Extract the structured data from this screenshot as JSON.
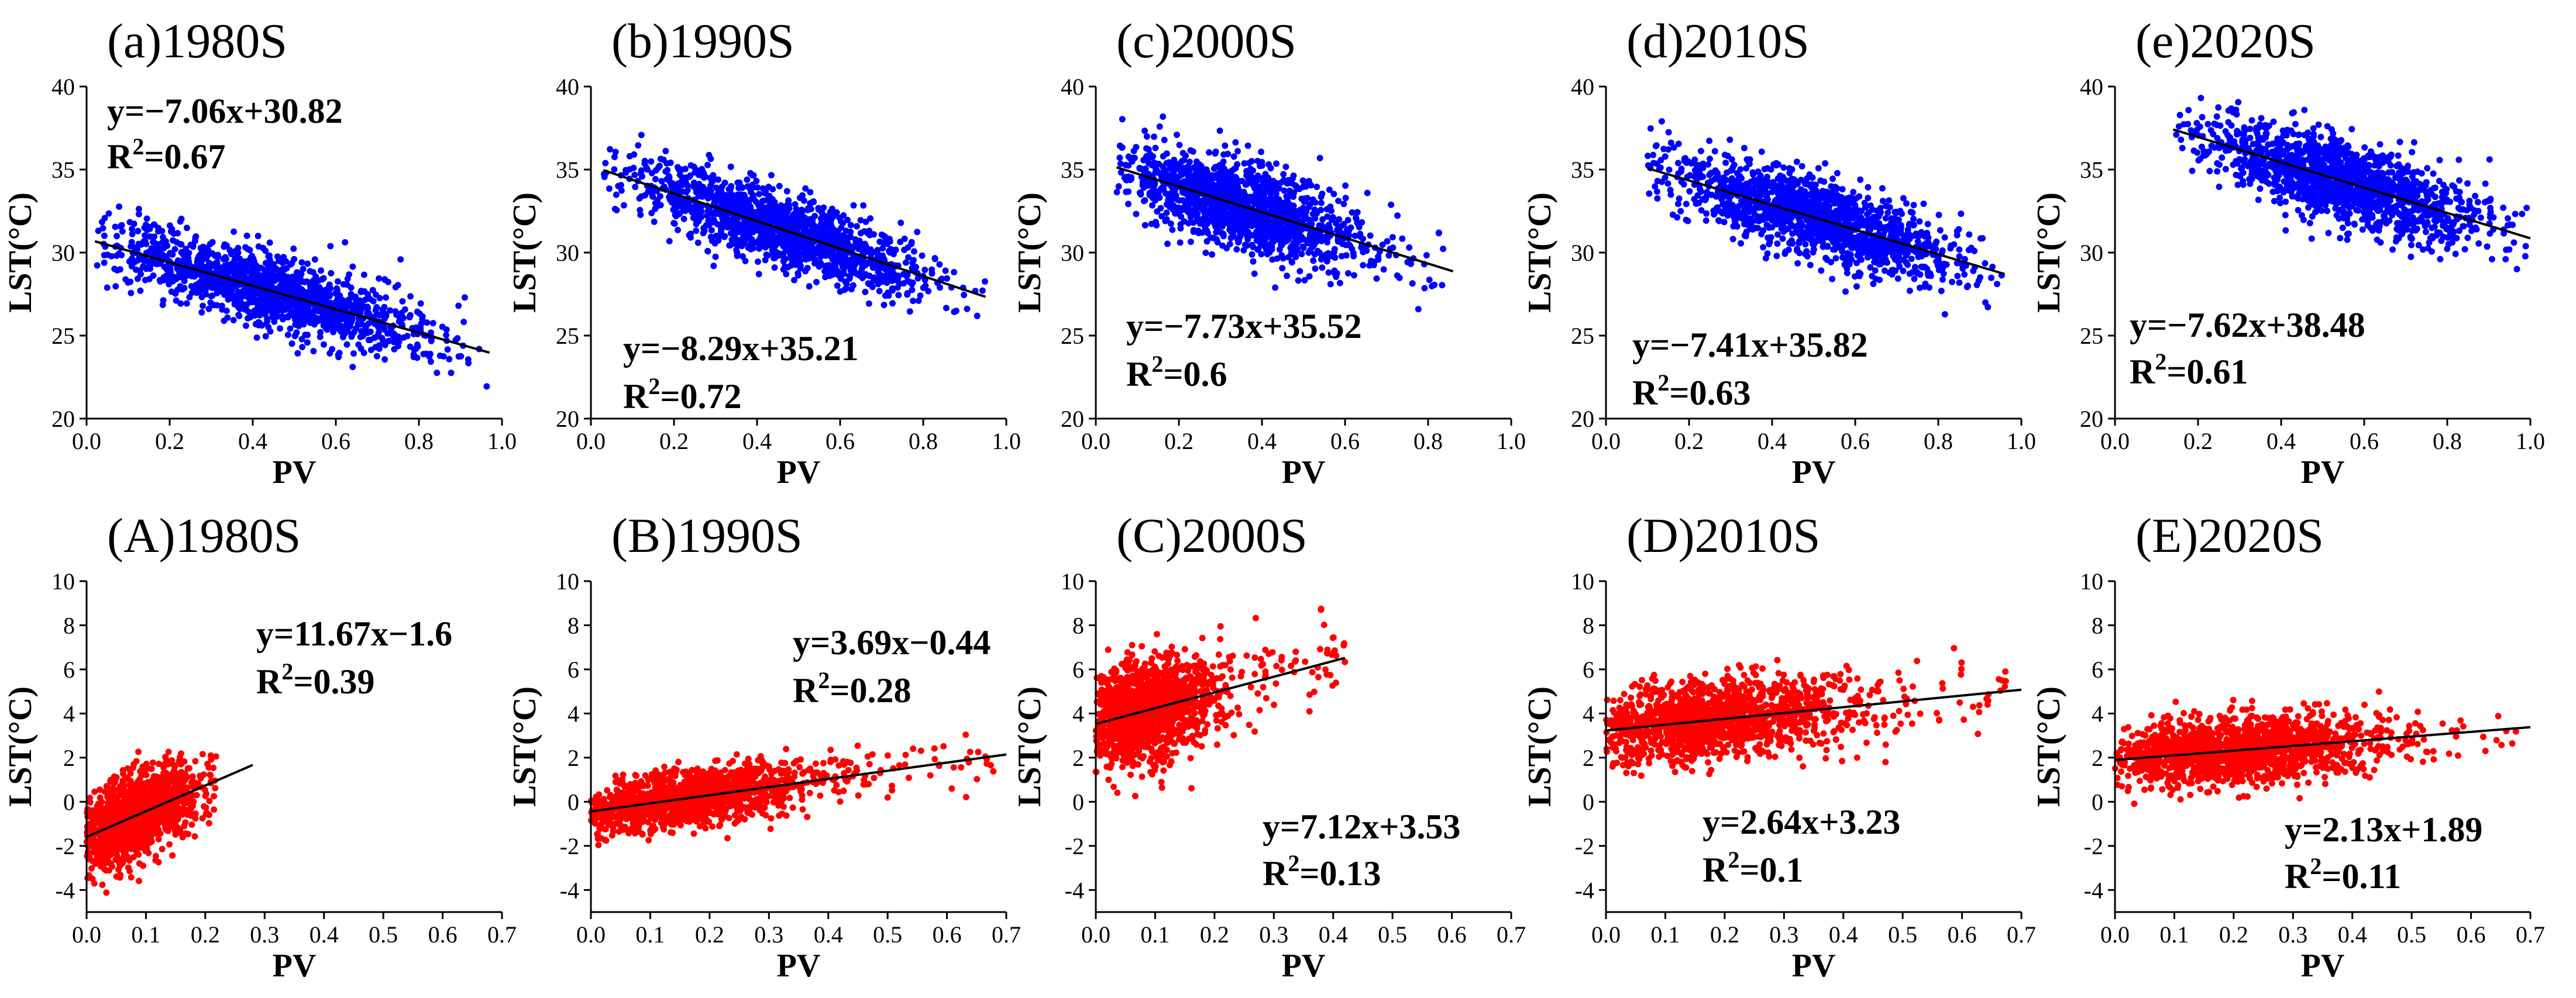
{
  "chart_data": [
    {
      "type": "scatter",
      "title": "(a)1980S",
      "xlabel": "PV",
      "ylabel": "LST(°C)",
      "xlim": [
        0,
        1
      ],
      "ylim": [
        20,
        40
      ],
      "xticks": [
        "0.0",
        "0.2",
        "0.4",
        "0.6",
        "0.8",
        "1.0"
      ],
      "yticks": [
        "20",
        "25",
        "30",
        "35",
        "40"
      ],
      "series": [
        {
          "color": "#0000ff",
          "cloud": {
            "x_range": [
              0.02,
              0.97
            ],
            "center_x": 0.45,
            "spread_x": 0.19,
            "residual_sd": 1.1
          }
        }
      ],
      "fit": {
        "slope": -7.06,
        "intercept": 30.82,
        "x_range": [
          0.02,
          0.97
        ]
      },
      "equation": "y=−7.06x+30.82",
      "r2_value": "=0.67",
      "grid": false
    },
    {
      "type": "scatter",
      "title": "(b)1990S",
      "xlabel": "PV",
      "ylabel": "LST(°C)",
      "xlim": [
        0,
        1
      ],
      "ylim": [
        20,
        40
      ],
      "xticks": [
        "0.0",
        "0.2",
        "0.4",
        "0.6",
        "0.8",
        "1.0"
      ],
      "yticks": [
        "20",
        "25",
        "30",
        "35",
        "40"
      ],
      "series": [
        {
          "color": "#0000ff",
          "cloud": {
            "x_range": [
              0.03,
              0.95
            ],
            "center_x": 0.45,
            "spread_x": 0.18,
            "residual_sd": 1.1
          }
        }
      ],
      "fit": {
        "slope": -8.29,
        "intercept": 35.21,
        "x_range": [
          0.03,
          0.95
        ]
      },
      "equation": "y=−8.29x+35.21",
      "r2_value": "=0.72",
      "grid": false
    },
    {
      "type": "scatter",
      "title": "(c)2000S",
      "xlabel": "PV",
      "ylabel": "LST(°C)",
      "xlim": [
        0,
        1
      ],
      "ylim": [
        20,
        40
      ],
      "xticks": [
        "0.0",
        "0.2",
        "0.4",
        "0.6",
        "0.8",
        "1.0"
      ],
      "yticks": [
        "20",
        "25",
        "30",
        "35",
        "40"
      ],
      "series": [
        {
          "color": "#0000ff",
          "cloud": {
            "x_range": [
              0.05,
              0.86
            ],
            "center_x": 0.35,
            "spread_x": 0.15,
            "residual_sd": 1.3
          }
        }
      ],
      "fit": {
        "slope": -7.73,
        "intercept": 35.52,
        "x_range": [
          0.05,
          0.86
        ]
      },
      "equation": "y=−7.73x+35.52",
      "r2_value": "=0.6",
      "grid": false
    },
    {
      "type": "scatter",
      "title": "(d)2010S",
      "xlabel": "PV",
      "ylabel": "LST(°C)",
      "xlim": [
        0,
        1
      ],
      "ylim": [
        20,
        40
      ],
      "xticks": [
        "0.0",
        "0.2",
        "0.4",
        "0.6",
        "0.8",
        "1.0"
      ],
      "yticks": [
        "20",
        "25",
        "30",
        "35",
        "40"
      ],
      "series": [
        {
          "color": "#0000ff",
          "cloud": {
            "x_range": [
              0.1,
              0.96
            ],
            "center_x": 0.5,
            "spread_x": 0.17,
            "residual_sd": 1.15
          }
        }
      ],
      "fit": {
        "slope": -7.41,
        "intercept": 35.82,
        "x_range": [
          0.1,
          0.96
        ]
      },
      "equation": "y=−7.41x+35.82",
      "r2_value": "=0.63",
      "grid": false
    },
    {
      "type": "scatter",
      "title": "(e)2020S",
      "xlabel": "PV",
      "ylabel": "LST(°C)",
      "xlim": [
        0,
        1
      ],
      "ylim": [
        20,
        40
      ],
      "xticks": [
        "0.0",
        "0.2",
        "0.4",
        "0.6",
        "0.8",
        "1.0"
      ],
      "yticks": [
        "20",
        "25",
        "30",
        "35",
        "40"
      ],
      "series": [
        {
          "color": "#0000ff",
          "cloud": {
            "x_range": [
              0.14,
              1.0
            ],
            "center_x": 0.55,
            "spread_x": 0.17,
            "residual_sd": 1.2
          }
        }
      ],
      "fit": {
        "slope": -7.62,
        "intercept": 38.48,
        "x_range": [
          0.14,
          1.0
        ]
      },
      "equation": "y=−7.62x+38.48",
      "r2_value": "=0.61",
      "grid": false
    },
    {
      "type": "scatter",
      "title": "(A)1980S",
      "xlabel": "PV",
      "ylabel": "LST(°C)",
      "xlim": [
        0,
        0.7
      ],
      "ylim": [
        -5,
        10
      ],
      "xticks": [
        "0.0",
        "0.1",
        "0.2",
        "0.3",
        "0.4",
        "0.5",
        "0.6",
        "0.7"
      ],
      "yticks": [
        "-4",
        "-2",
        "0",
        "2",
        "4",
        "6",
        "8",
        "10"
      ],
      "series": [
        {
          "color": "#ff0000",
          "cloud": {
            "x_range": [
              0.0,
              0.22
            ],
            "center_x": 0.08,
            "spread_x": 0.05,
            "residual_sd": 0.9
          }
        }
      ],
      "fit": {
        "slope": 11.67,
        "intercept": -1.6,
        "x_range": [
          0.0,
          0.28
        ]
      },
      "equation": "y=11.67x−1.6",
      "r2_value": "=0.39",
      "grid": false
    },
    {
      "type": "scatter",
      "title": "(B)1990S",
      "xlabel": "PV",
      "ylabel": "LST(°C)",
      "xlim": [
        0,
        0.7
      ],
      "ylim": [
        -5,
        10
      ],
      "xticks": [
        "0.0",
        "0.1",
        "0.2",
        "0.3",
        "0.4",
        "0.5",
        "0.6",
        "0.7"
      ],
      "yticks": [
        "-4",
        "-2",
        "0",
        "2",
        "4",
        "6",
        "8",
        "10"
      ],
      "series": [
        {
          "color": "#ff0000",
          "cloud": {
            "x_range": [
              0.0,
              0.68
            ],
            "center_x": 0.15,
            "spread_x": 0.11,
            "residual_sd": 0.6
          }
        }
      ],
      "fit": {
        "slope": 3.69,
        "intercept": -0.44,
        "x_range": [
          0.0,
          0.7
        ]
      },
      "equation": "y=3.69x−0.44",
      "r2_value": "=0.28",
      "grid": false
    },
    {
      "type": "scatter",
      "title": "(C)2000S",
      "xlabel": "PV",
      "ylabel": "LST(°C)",
      "xlim": [
        0,
        0.7
      ],
      "ylim": [
        -5,
        10
      ],
      "xticks": [
        "0.0",
        "0.1",
        "0.2",
        "0.3",
        "0.4",
        "0.5",
        "0.6",
        "0.7"
      ],
      "yticks": [
        "-4",
        "-2",
        "0",
        "2",
        "4",
        "6",
        "8",
        "10"
      ],
      "series": [
        {
          "color": "#ff0000",
          "cloud": {
            "x_range": [
              0.0,
              0.42
            ],
            "center_x": 0.08,
            "spread_x": 0.06,
            "residual_sd": 1.1
          }
        }
      ],
      "fit": {
        "slope": 7.12,
        "intercept": 3.53,
        "x_range": [
          0.0,
          0.42
        ]
      },
      "equation": "y=7.12x+3.53",
      "r2_value": "=0.13",
      "grid": false
    },
    {
      "type": "scatter",
      "title": "(D)2010S",
      "xlabel": "PV",
      "ylabel": "LST(°C)",
      "xlim": [
        0,
        0.7
      ],
      "ylim": [
        -5,
        10
      ],
      "xticks": [
        "0.0",
        "0.1",
        "0.2",
        "0.3",
        "0.4",
        "0.5",
        "0.6",
        "0.7"
      ],
      "yticks": [
        "-4",
        "-2",
        "0",
        "2",
        "4",
        "6",
        "8",
        "10"
      ],
      "series": [
        {
          "color": "#ff0000",
          "cloud": {
            "x_range": [
              0.0,
              0.68
            ],
            "center_x": 0.17,
            "spread_x": 0.12,
            "residual_sd": 0.9
          }
        }
      ],
      "fit": {
        "slope": 2.64,
        "intercept": 3.23,
        "x_range": [
          0.0,
          0.7
        ]
      },
      "equation": "y=2.64x+3.23",
      "r2_value": "=0.1",
      "grid": false
    },
    {
      "type": "scatter",
      "title": "(E)2020S",
      "xlabel": "PV",
      "ylabel": "LST(°C)",
      "xlim": [
        0,
        0.7
      ],
      "ylim": [
        -5,
        10
      ],
      "xticks": [
        "0.0",
        "0.1",
        "0.2",
        "0.3",
        "0.4",
        "0.5",
        "0.6",
        "0.7"
      ],
      "yticks": [
        "-4",
        "-2",
        "0",
        "2",
        "4",
        "6",
        "8",
        "10"
      ],
      "series": [
        {
          "color": "#ff0000",
          "cloud": {
            "x_range": [
              0.0,
              0.68
            ],
            "center_x": 0.2,
            "spread_x": 0.12,
            "residual_sd": 0.75
          }
        }
      ],
      "fit": {
        "slope": 2.13,
        "intercept": 1.89,
        "x_range": [
          0.0,
          0.7
        ]
      },
      "equation": "y=2.13x+1.89",
      "r2_value": "=0.11",
      "grid": false
    }
  ]
}
